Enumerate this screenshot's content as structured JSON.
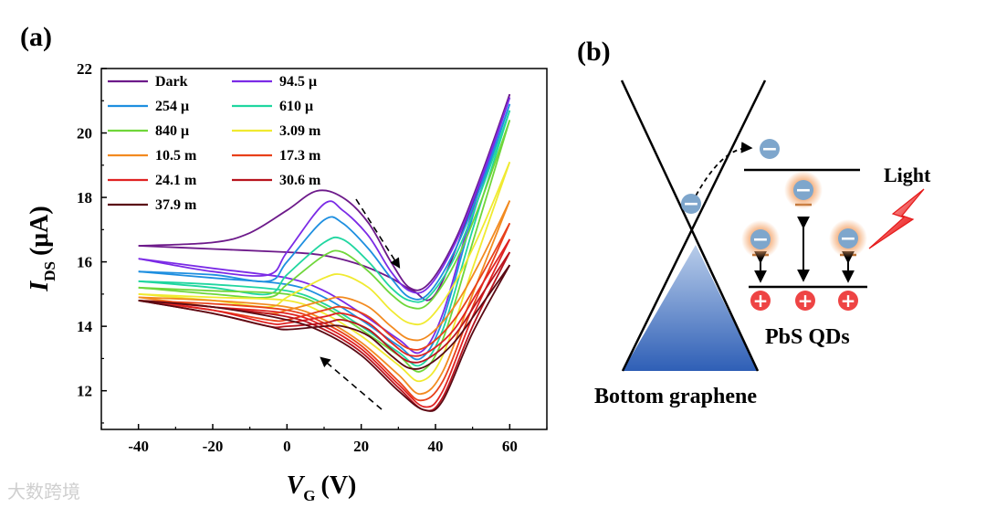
{
  "panel_a_label": "(a)",
  "panel_b_label": "(b)",
  "chart_data": {
    "type": "line",
    "xlabel_main": "V",
    "xlabel_sub": "G",
    "xlabel_unit": "(V)",
    "ylabel_main": "I",
    "ylabel_sub": "DS",
    "ylabel_unit": "(μA)",
    "xlim": [
      -50,
      70
    ],
    "ylim": [
      10.8,
      22
    ],
    "xticks": [
      -40,
      -20,
      0,
      20,
      40,
      60
    ],
    "yticks": [
      12,
      14,
      16,
      18,
      20,
      22
    ],
    "legend": [
      {
        "label": "Dark",
        "color": "#6d1a8a"
      },
      {
        "label": "94.5 μ",
        "color": "#7b2be6"
      },
      {
        "label": "254 μ",
        "color": "#1e8fe0"
      },
      {
        "label": "610 μ",
        "color": "#20d6a0"
      },
      {
        "label": "840 μ",
        "color": "#6fd63a"
      },
      {
        "label": "3.09 m",
        "color": "#f0ea30"
      },
      {
        "label": "10.5  m",
        "color": "#f28a20"
      },
      {
        "label": "17.3 m",
        "color": "#e8401a"
      },
      {
        "label": "24.1 m",
        "color": "#e02222"
      },
      {
        "label": "30.6 m",
        "color": "#b8141e"
      },
      {
        "label": "37.9 m",
        "color": "#5a0a14"
      }
    ],
    "series": [
      {
        "name": "Dark",
        "forward": [
          [
            -40,
            16.5
          ],
          [
            -20,
            16.6
          ],
          [
            -10,
            16.9
          ],
          [
            0,
            17.6
          ],
          [
            8,
            18.2
          ],
          [
            15,
            18.0
          ],
          [
            22,
            17.2
          ],
          [
            28,
            16.0
          ],
          [
            33,
            15.2
          ],
          [
            38,
            15.3
          ],
          [
            45,
            16.6
          ],
          [
            52,
            18.6
          ],
          [
            60,
            21.2
          ]
        ],
        "backward": [
          [
            60,
            21.2
          ],
          [
            50,
            17.8
          ],
          [
            40,
            15.0
          ],
          [
            34,
            15.1
          ],
          [
            28,
            15.5
          ],
          [
            20,
            15.9
          ],
          [
            10,
            16.2
          ],
          [
            0,
            16.3
          ],
          [
            -20,
            16.4
          ],
          [
            -40,
            16.5
          ]
        ]
      },
      {
        "name": "94.5 μ",
        "forward": [
          [
            -40,
            16.1
          ],
          [
            -20,
            15.7
          ],
          [
            -5,
            15.6
          ],
          [
            0,
            16.3
          ],
          [
            10,
            17.8
          ],
          [
            15,
            17.6
          ],
          [
            22,
            16.8
          ],
          [
            28,
            15.7
          ],
          [
            33,
            15.1
          ],
          [
            38,
            15.2
          ],
          [
            45,
            16.5
          ],
          [
            52,
            18.5
          ],
          [
            60,
            21.1
          ]
        ],
        "backward": [
          [
            60,
            21.1
          ],
          [
            50,
            17.6
          ],
          [
            42,
            14.4
          ],
          [
            36,
            13.2
          ],
          [
            30,
            13.6
          ],
          [
            20,
            14.4
          ],
          [
            10,
            15.1
          ],
          [
            0,
            15.5
          ],
          [
            -20,
            15.8
          ],
          [
            -40,
            16.1
          ]
        ]
      },
      {
        "name": "254 μ",
        "forward": [
          [
            -40,
            15.7
          ],
          [
            -20,
            15.6
          ],
          [
            -5,
            15.4
          ],
          [
            0,
            16.0
          ],
          [
            10,
            17.3
          ],
          [
            15,
            17.2
          ],
          [
            22,
            16.4
          ],
          [
            28,
            15.5
          ],
          [
            33,
            14.9
          ],
          [
            38,
            15.0
          ],
          [
            45,
            16.3
          ],
          [
            52,
            18.3
          ],
          [
            60,
            20.9
          ]
        ],
        "backward": [
          [
            60,
            20.9
          ],
          [
            50,
            17.4
          ],
          [
            42,
            14.2
          ],
          [
            36,
            13.0
          ],
          [
            30,
            13.4
          ],
          [
            20,
            14.2
          ],
          [
            10,
            14.9
          ],
          [
            0,
            15.3
          ],
          [
            -20,
            15.5
          ],
          [
            -40,
            15.7
          ]
        ]
      },
      {
        "name": "610 μ",
        "forward": [
          [
            -40,
            15.4
          ],
          [
            -20,
            15.2
          ],
          [
            -5,
            15.0
          ],
          [
            0,
            15.6
          ],
          [
            10,
            16.6
          ],
          [
            15,
            16.7
          ],
          [
            22,
            16.0
          ],
          [
            28,
            15.2
          ],
          [
            33,
            14.8
          ],
          [
            38,
            14.9
          ],
          [
            45,
            16.1
          ],
          [
            52,
            18.1
          ],
          [
            60,
            20.7
          ]
        ],
        "backward": [
          [
            60,
            20.7
          ],
          [
            50,
            17.0
          ],
          [
            42,
            13.9
          ],
          [
            36,
            12.8
          ],
          [
            30,
            13.2
          ],
          [
            20,
            14.0
          ],
          [
            10,
            14.7
          ],
          [
            0,
            15.1
          ],
          [
            -20,
            15.3
          ],
          [
            -40,
            15.4
          ]
        ]
      },
      {
        "name": "840 μ",
        "forward": [
          [
            -40,
            15.2
          ],
          [
            -20,
            15.0
          ],
          [
            -5,
            14.9
          ],
          [
            0,
            15.3
          ],
          [
            10,
            16.2
          ],
          [
            15,
            16.3
          ],
          [
            22,
            15.7
          ],
          [
            28,
            15.0
          ],
          [
            33,
            14.6
          ],
          [
            38,
            14.7
          ],
          [
            45,
            15.9
          ],
          [
            52,
            17.8
          ],
          [
            60,
            20.4
          ]
        ],
        "backward": [
          [
            60,
            20.4
          ],
          [
            50,
            16.6
          ],
          [
            42,
            13.6
          ],
          [
            36,
            12.6
          ],
          [
            30,
            13.1
          ],
          [
            20,
            13.9
          ],
          [
            10,
            14.6
          ],
          [
            0,
            15.0
          ],
          [
            -20,
            15.1
          ],
          [
            -40,
            15.2
          ]
        ]
      },
      {
        "name": "3.09 m",
        "forward": [
          [
            -40,
            15.0
          ],
          [
            -20,
            14.8
          ],
          [
            -5,
            14.6
          ],
          [
            0,
            14.9
          ],
          [
            10,
            15.5
          ],
          [
            15,
            15.6
          ],
          [
            22,
            15.2
          ],
          [
            28,
            14.5
          ],
          [
            33,
            14.1
          ],
          [
            38,
            14.2
          ],
          [
            45,
            15.3
          ],
          [
            52,
            16.9
          ],
          [
            60,
            19.1
          ]
        ],
        "backward": [
          [
            60,
            19.1
          ],
          [
            50,
            15.8
          ],
          [
            42,
            13.1
          ],
          [
            36,
            12.3
          ],
          [
            30,
            12.8
          ],
          [
            20,
            13.7
          ],
          [
            10,
            14.4
          ],
          [
            0,
            14.8
          ],
          [
            -20,
            14.9
          ],
          [
            -40,
            15.0
          ]
        ]
      },
      {
        "name": "10.5  m",
        "forward": [
          [
            -40,
            14.9
          ],
          [
            -20,
            14.6
          ],
          [
            -5,
            14.4
          ],
          [
            0,
            14.5
          ],
          [
            10,
            14.8
          ],
          [
            15,
            14.9
          ],
          [
            22,
            14.6
          ],
          [
            28,
            14.0
          ],
          [
            33,
            13.6
          ],
          [
            38,
            13.7
          ],
          [
            45,
            14.6
          ],
          [
            52,
            16.0
          ],
          [
            60,
            17.9
          ]
        ],
        "backward": [
          [
            60,
            17.9
          ],
          [
            50,
            15.0
          ],
          [
            42,
            12.6
          ],
          [
            36,
            11.9
          ],
          [
            30,
            12.5
          ],
          [
            20,
            13.5
          ],
          [
            10,
            14.2
          ],
          [
            0,
            14.6
          ],
          [
            -20,
            14.8
          ],
          [
            -40,
            14.9
          ]
        ]
      },
      {
        "name": "17.3 m",
        "forward": [
          [
            -40,
            14.8
          ],
          [
            -20,
            14.5
          ],
          [
            -5,
            14.2
          ],
          [
            0,
            14.2
          ],
          [
            10,
            14.5
          ],
          [
            15,
            14.6
          ],
          [
            22,
            14.3
          ],
          [
            28,
            13.7
          ],
          [
            33,
            13.3
          ],
          [
            38,
            13.4
          ],
          [
            45,
            14.2
          ],
          [
            52,
            15.5
          ],
          [
            60,
            17.2
          ]
        ],
        "backward": [
          [
            60,
            17.2
          ],
          [
            50,
            14.6
          ],
          [
            42,
            12.3
          ],
          [
            36,
            11.7
          ],
          [
            30,
            12.3
          ],
          [
            20,
            13.4
          ],
          [
            10,
            14.1
          ],
          [
            0,
            14.5
          ],
          [
            -20,
            14.7
          ],
          [
            -40,
            14.8
          ]
        ]
      },
      {
        "name": "24.1 m",
        "forward": [
          [
            -40,
            14.8
          ],
          [
            -20,
            14.5
          ],
          [
            -5,
            14.1
          ],
          [
            0,
            14.1
          ],
          [
            10,
            14.3
          ],
          [
            15,
            14.4
          ],
          [
            22,
            14.1
          ],
          [
            28,
            13.5
          ],
          [
            33,
            13.1
          ],
          [
            38,
            13.2
          ],
          [
            45,
            13.9
          ],
          [
            52,
            15.2
          ],
          [
            60,
            16.7
          ]
        ],
        "backward": [
          [
            60,
            16.7
          ],
          [
            50,
            14.3
          ],
          [
            42,
            12.0
          ],
          [
            37,
            11.5
          ],
          [
            30,
            12.2
          ],
          [
            20,
            13.3
          ],
          [
            10,
            14.0
          ],
          [
            0,
            14.4
          ],
          [
            -20,
            14.6
          ],
          [
            -40,
            14.8
          ]
        ]
      },
      {
        "name": "30.6 m",
        "forward": [
          [
            -40,
            14.8
          ],
          [
            -20,
            14.4
          ],
          [
            -5,
            14.0
          ],
          [
            0,
            14.0
          ],
          [
            10,
            14.1
          ],
          [
            15,
            14.2
          ],
          [
            22,
            13.9
          ],
          [
            28,
            13.3
          ],
          [
            33,
            12.9
          ],
          [
            38,
            13.0
          ],
          [
            45,
            13.7
          ],
          [
            52,
            14.9
          ],
          [
            60,
            16.3
          ]
        ],
        "backward": [
          [
            60,
            16.3
          ],
          [
            50,
            14.0
          ],
          [
            42,
            11.8
          ],
          [
            37,
            11.4
          ],
          [
            30,
            12.1
          ],
          [
            20,
            13.2
          ],
          [
            10,
            13.9
          ],
          [
            0,
            14.3
          ],
          [
            -20,
            14.6
          ],
          [
            -40,
            14.8
          ]
        ]
      },
      {
        "name": "37.9 m",
        "forward": [
          [
            -40,
            14.8
          ],
          [
            -20,
            14.4
          ],
          [
            -5,
            14.0
          ],
          [
            0,
            13.9
          ],
          [
            10,
            14.0
          ],
          [
            15,
            14.0
          ],
          [
            22,
            13.7
          ],
          [
            28,
            13.1
          ],
          [
            33,
            12.7
          ],
          [
            38,
            12.8
          ],
          [
            45,
            13.5
          ],
          [
            52,
            14.6
          ],
          [
            60,
            15.9
          ]
        ],
        "backward": [
          [
            60,
            15.9
          ],
          [
            50,
            13.8
          ],
          [
            42,
            11.7
          ],
          [
            37,
            11.4
          ],
          [
            30,
            12.0
          ],
          [
            20,
            13.1
          ],
          [
            10,
            13.8
          ],
          [
            0,
            14.2
          ],
          [
            -20,
            14.6
          ],
          [
            -40,
            14.8
          ]
        ]
      }
    ]
  },
  "diagram": {
    "light_label": "Light",
    "pbs_label": "PbS QDs",
    "graphene_label": "Bottom graphene",
    "electron_symbol": "−",
    "hole_symbol": "+",
    "electron_color": "#7ea6cc",
    "hole_color": "#ee4444",
    "glow_color": "#f3a46a",
    "fill_top": "#b9cdea",
    "fill_bottom": "#2f5fb6",
    "light_color": "#e51a1a"
  },
  "watermark": "大数跨境"
}
